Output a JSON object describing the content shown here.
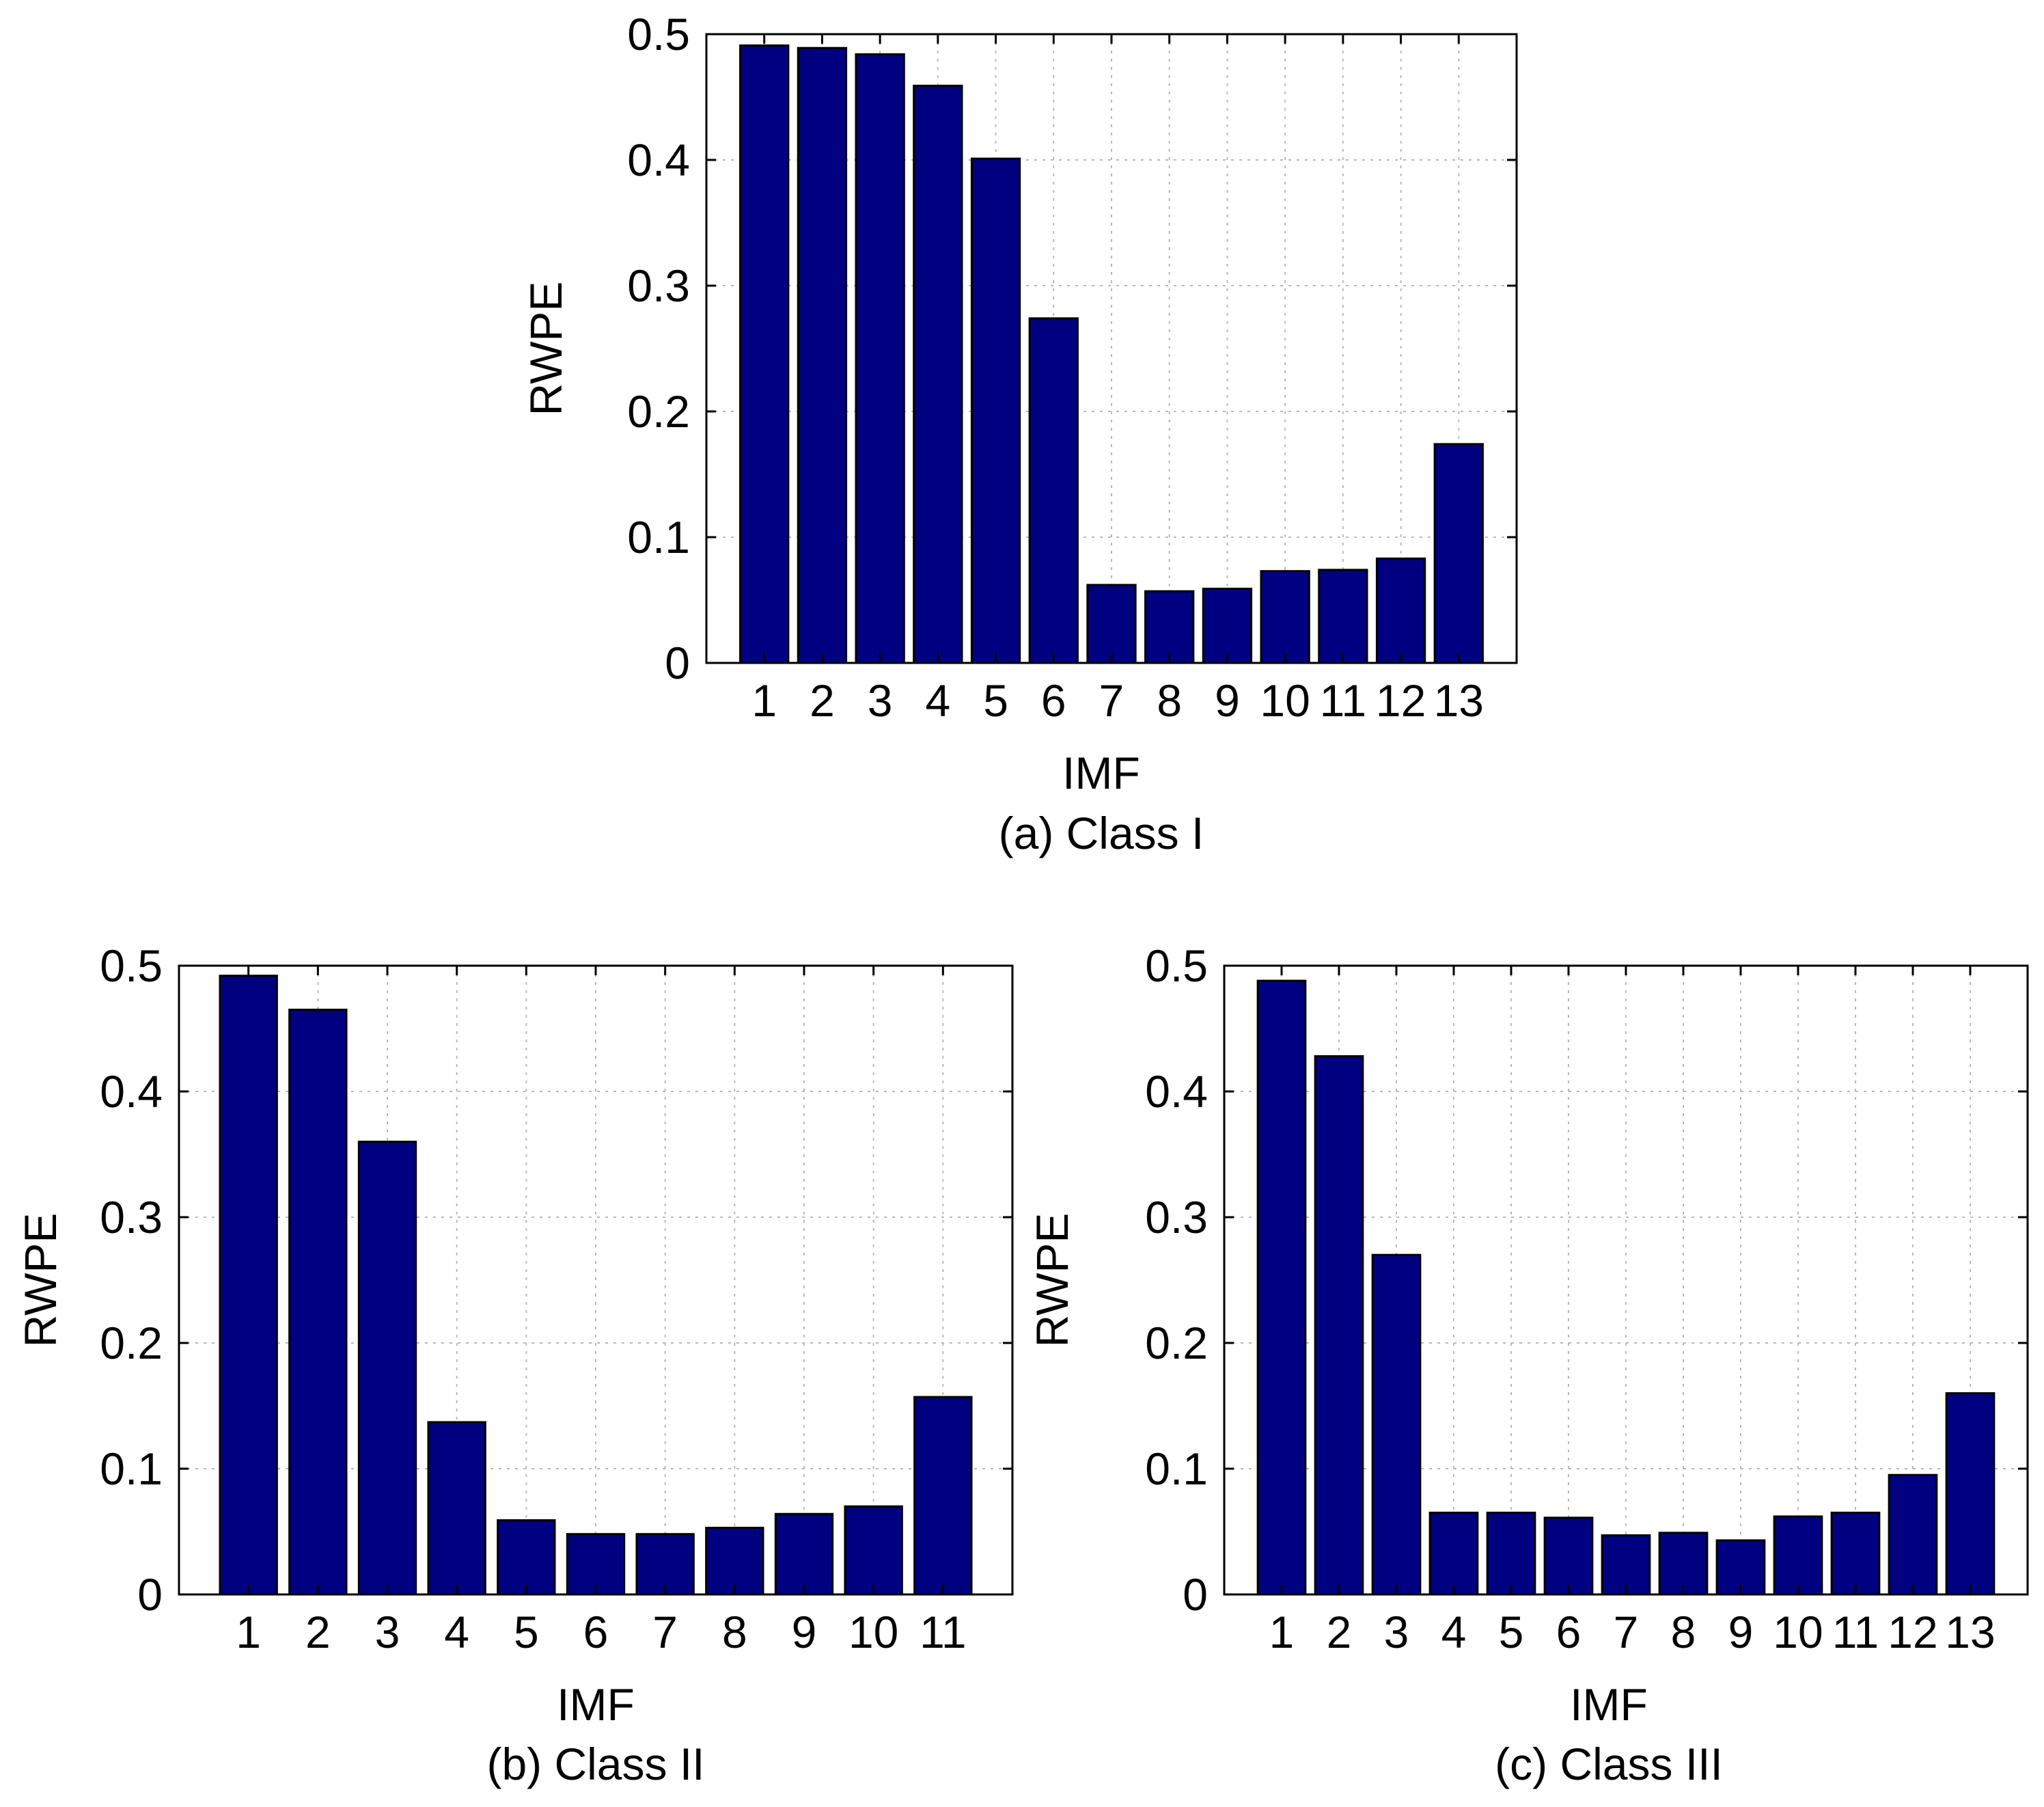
{
  "chart_data": [
    {
      "type": "bar",
      "caption": "(a) Class I",
      "xlabel": "IMF",
      "ylabel": "RWPE",
      "ylim": [
        0,
        0.5
      ],
      "yticks": [
        "0",
        "0.1",
        "0.2",
        "0.3",
        "0.4",
        "0.5"
      ],
      "categories": [
        "1",
        "2",
        "3",
        "4",
        "5",
        "6",
        "7",
        "8",
        "9",
        "10",
        "11",
        "12",
        "13"
      ],
      "values": [
        0.491,
        0.489,
        0.484,
        0.459,
        0.401,
        0.274,
        0.062,
        0.057,
        0.059,
        0.073,
        0.074,
        0.083,
        0.174
      ],
      "grid": true,
      "bar_color": "#000080"
    },
    {
      "type": "bar",
      "caption": "(b) Class II",
      "xlabel": "IMF",
      "ylabel": "RWPE",
      "ylim": [
        0,
        0.5
      ],
      "yticks": [
        "0",
        "0.1",
        "0.2",
        "0.3",
        "0.4",
        "0.5"
      ],
      "categories": [
        "1",
        "2",
        "3",
        "4",
        "5",
        "6",
        "7",
        "8",
        "9",
        "10",
        "11"
      ],
      "values": [
        0.492,
        0.465,
        0.36,
        0.137,
        0.059,
        0.048,
        0.048,
        0.053,
        0.064,
        0.07,
        0.157
      ],
      "grid": true,
      "bar_color": "#000080"
    },
    {
      "type": "bar",
      "caption": "(c) Class III",
      "xlabel": "IMF",
      "ylabel": "RWPE",
      "ylim": [
        0,
        0.5
      ],
      "yticks": [
        "0",
        "0.1",
        "0.2",
        "0.3",
        "0.4",
        "0.5"
      ],
      "categories": [
        "1",
        "2",
        "3",
        "4",
        "5",
        "6",
        "7",
        "8",
        "9",
        "10",
        "11",
        "12",
        "13"
      ],
      "values": [
        0.488,
        0.428,
        0.27,
        0.065,
        0.065,
        0.061,
        0.047,
        0.049,
        0.043,
        0.062,
        0.065,
        0.095,
        0.16
      ],
      "grid": true,
      "bar_color": "#000080"
    }
  ]
}
